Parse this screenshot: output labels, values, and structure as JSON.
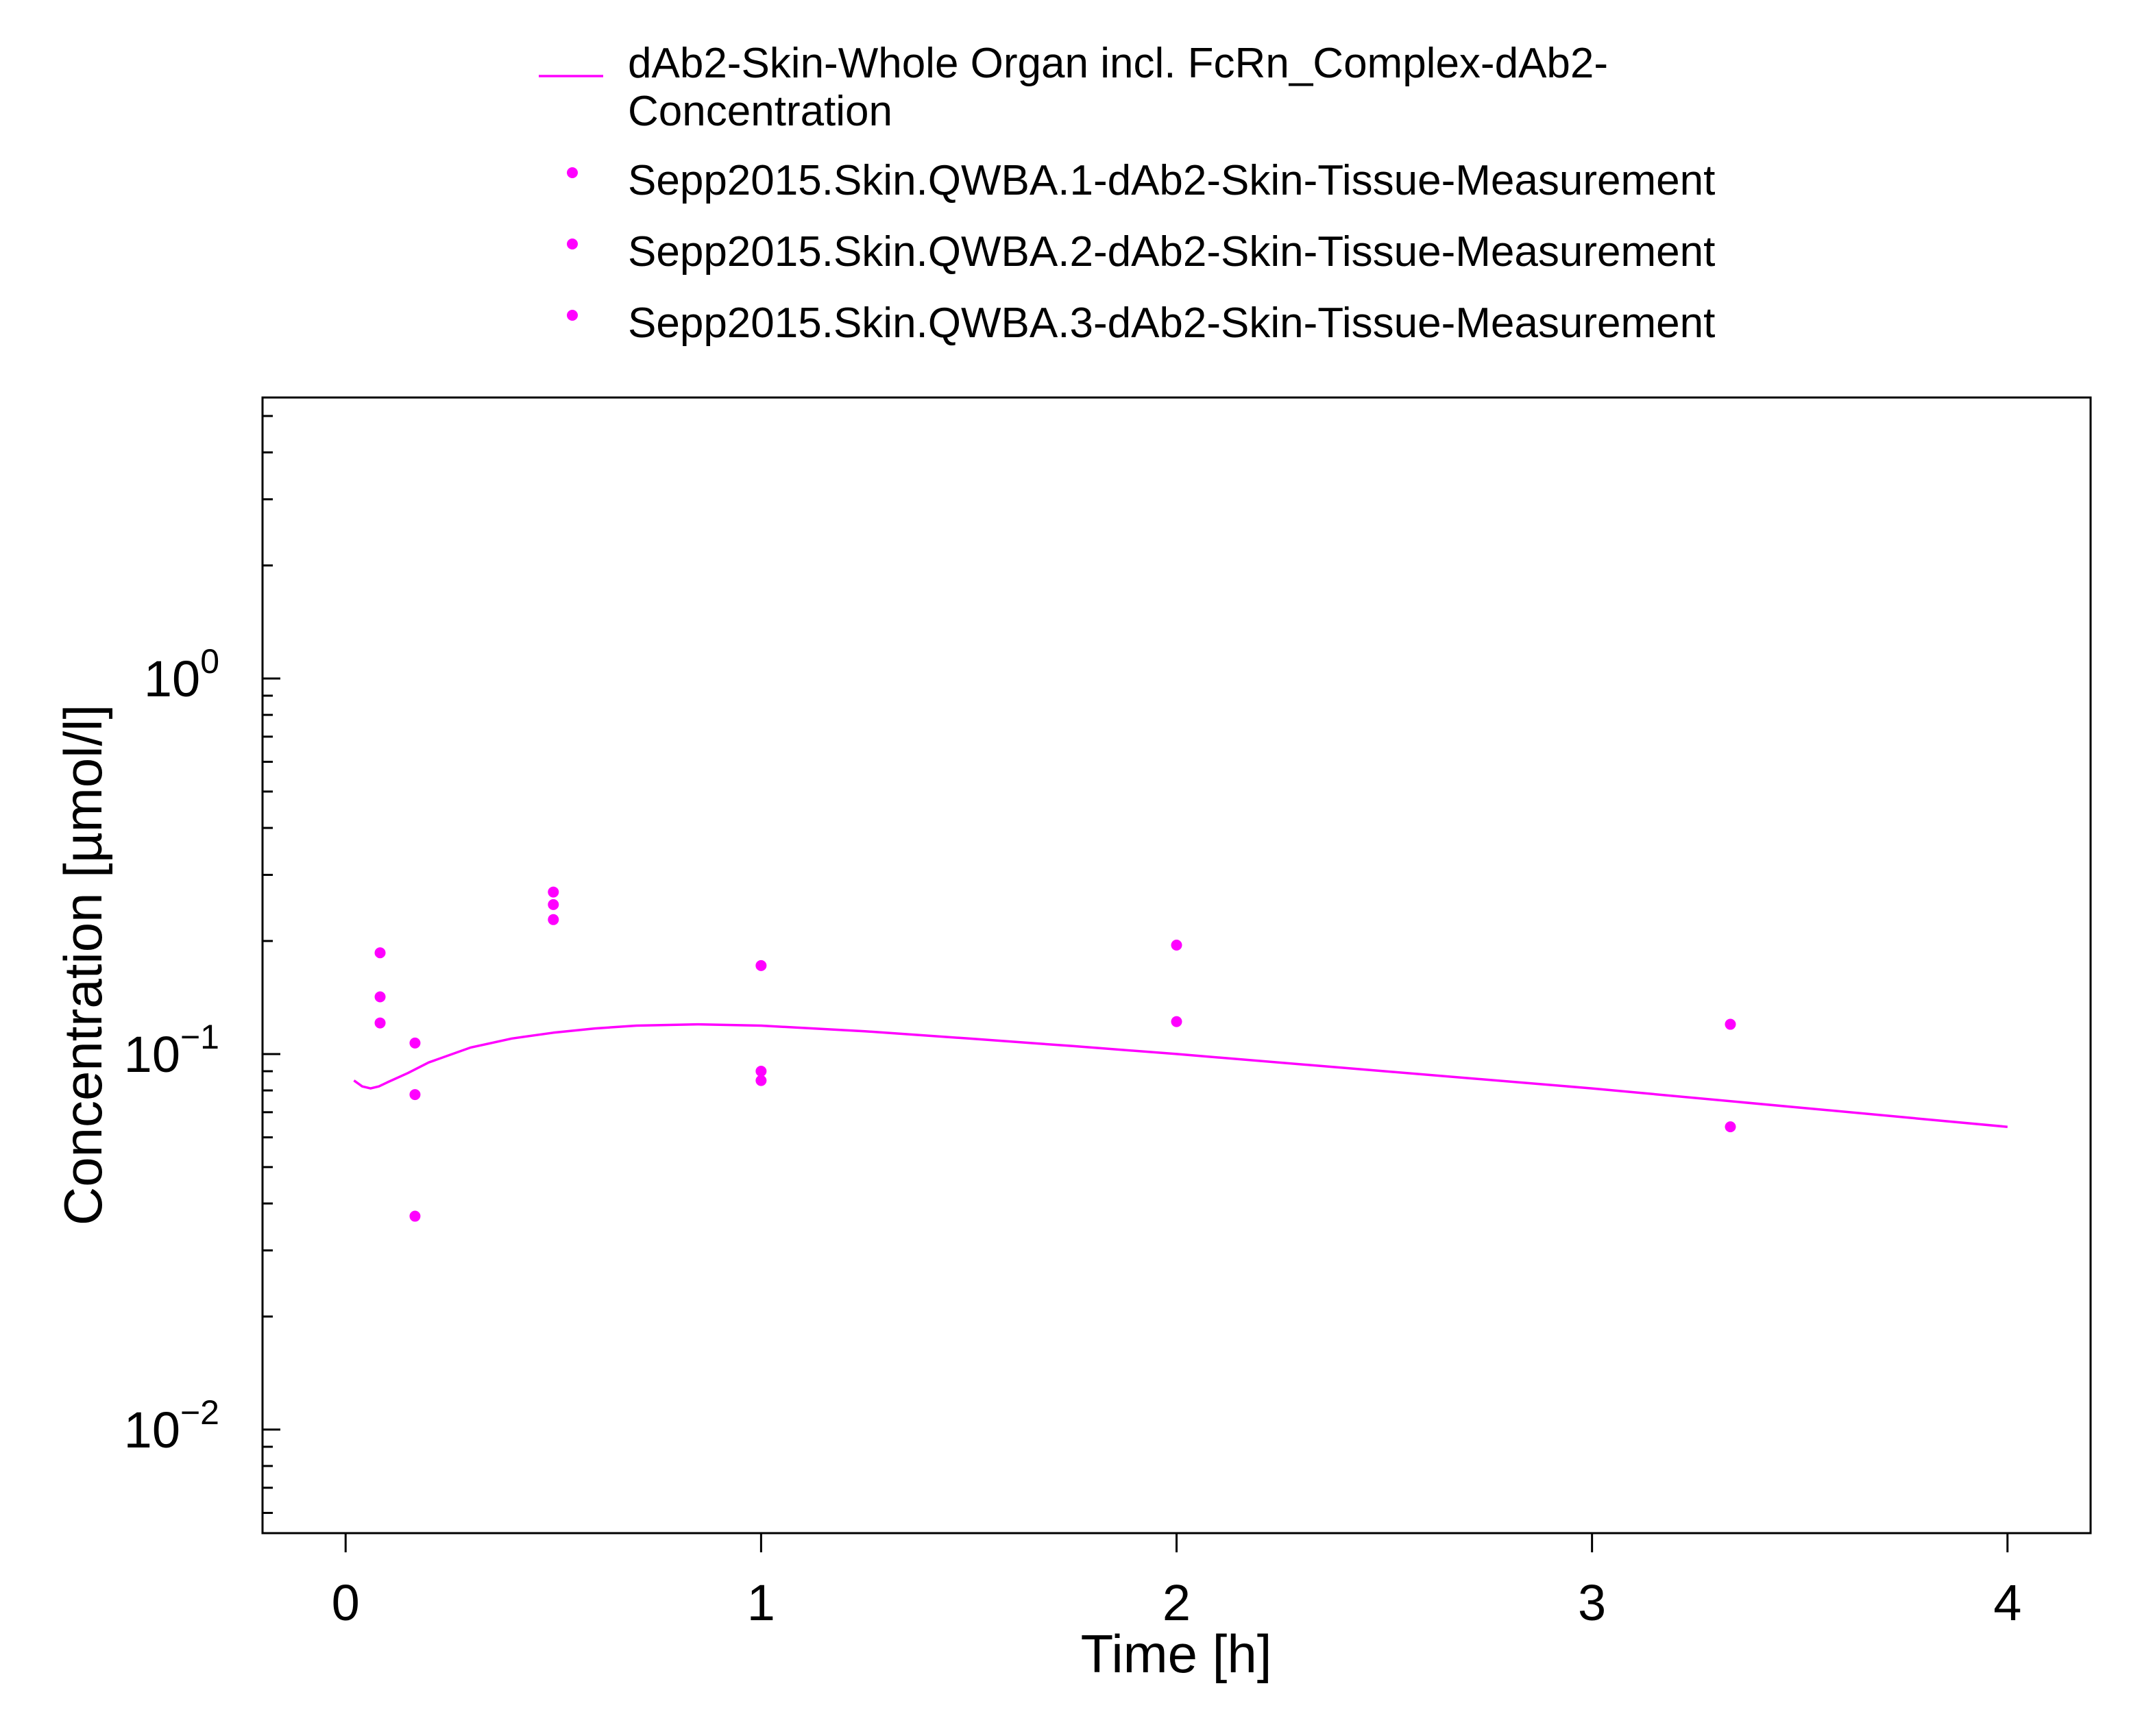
{
  "chart_data": {
    "type": "scatter",
    "xlabel": "Time [h]",
    "ylabel": "Concentration [µmol/l]",
    "xlim": [
      -0.2,
      4.2
    ],
    "ylim": [
      0.0053,
      5.6
    ],
    "yscale": "log",
    "grid": false,
    "legend_position": "top",
    "x_ticks": [
      {
        "value": 0,
        "label": "0"
      },
      {
        "value": 1,
        "label": "1"
      },
      {
        "value": 2,
        "label": "2"
      },
      {
        "value": 3,
        "label": "3"
      },
      {
        "value": 4,
        "label": "4"
      }
    ],
    "y_ticks": [
      {
        "value": 0.01,
        "base": "10",
        "exp": "−2"
      },
      {
        "value": 0.1,
        "base": "10",
        "exp": "−1"
      },
      {
        "value": 1,
        "base": "10",
        "exp": "0"
      }
    ],
    "series": [
      {
        "name": "dAb2-Skin-Whole Organ incl. FcRn_Complex-dAb2-Concentration",
        "name_lines": [
          "dAb2-Skin-Whole Organ incl. FcRn_Complex-dAb2-",
          "Concentration"
        ],
        "kind": "line",
        "color": "#ff00ff",
        "x": [
          0.02,
          0.04,
          0.06,
          0.08,
          0.1,
          0.15,
          0.2,
          0.3,
          0.4,
          0.5,
          0.6,
          0.7,
          0.85,
          1.0,
          1.25,
          1.5,
          1.75,
          2.0,
          2.5,
          3.0,
          3.5,
          4.0
        ],
        "y": [
          0.085,
          0.082,
          0.081,
          0.082,
          0.084,
          0.089,
          0.095,
          0.104,
          0.11,
          0.114,
          0.117,
          0.119,
          0.12,
          0.119,
          0.115,
          0.11,
          0.105,
          0.1,
          0.09,
          0.081,
          0.072,
          0.064
        ]
      },
      {
        "name": "Sepp2015.Skin.QWBA.1-dAb2-Skin-Tissue-Measurement",
        "kind": "scatter",
        "color": "#ff00ff",
        "x": [
          0.083,
          0.167,
          0.5,
          1.0,
          2.0,
          3.333
        ],
        "y": [
          0.186,
          0.107,
          0.27,
          0.172,
          0.195,
          0.12
        ]
      },
      {
        "name": "Sepp2015.Skin.QWBA.2-dAb2-Skin-Tissue-Measurement",
        "kind": "scatter",
        "color": "#ff00ff",
        "x": [
          0.083,
          0.167,
          0.5,
          1.0,
          2.0,
          3.333
        ],
        "y": [
          0.142,
          0.078,
          0.25,
          0.09,
          0.122,
          0.064
        ]
      },
      {
        "name": "Sepp2015.Skin.QWBA.3-dAb2-Skin-Tissue-Measurement",
        "kind": "scatter",
        "color": "#ff00ff",
        "x": [
          0.083,
          0.167,
          0.5,
          1.0
        ],
        "y": [
          0.121,
          0.037,
          0.228,
          0.085
        ]
      }
    ]
  }
}
